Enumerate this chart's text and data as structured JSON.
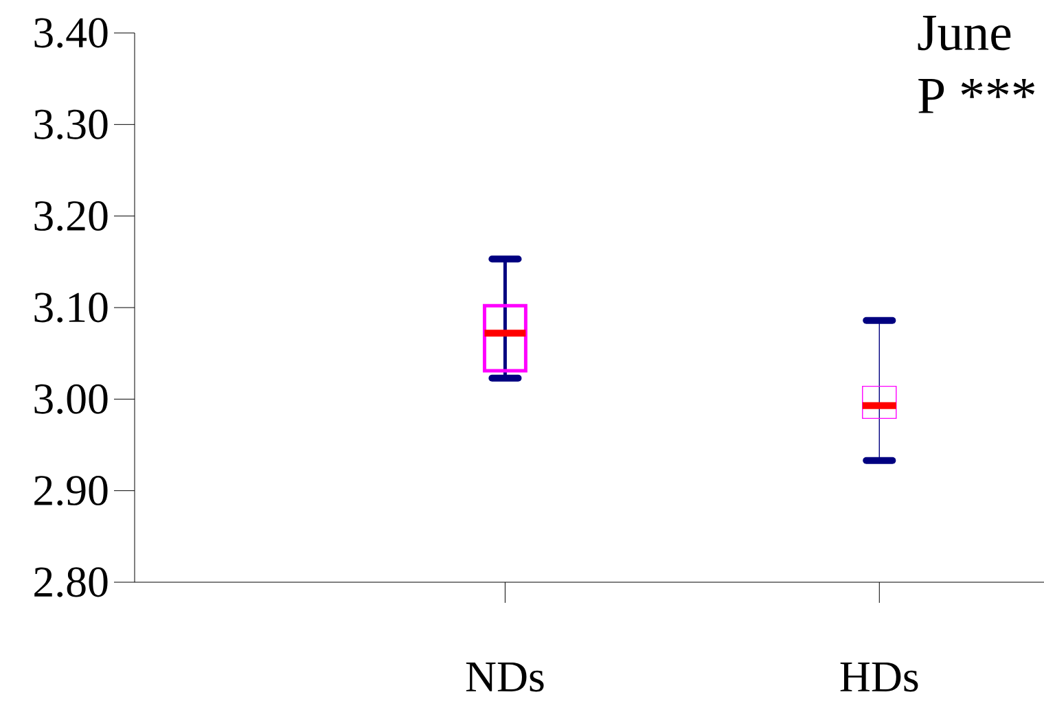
{
  "chart_data": {
    "type": "box",
    "categories": [
      "NDs",
      "HDs"
    ],
    "series": [
      {
        "color": "#ff00ff",
        "boxes": [
          {
            "low": 3.023,
            "q1": 3.031,
            "median": 3.072,
            "q3": 3.102,
            "high": 3.153
          },
          {
            "low": 2.933,
            "q1": 2.979,
            "median": 2.993,
            "q3": 3.014,
            "high": 3.086
          }
        ]
      }
    ],
    "ylim": [
      2.8,
      3.4
    ],
    "yticks": [
      {
        "value": 2.8,
        "label": "2.80"
      },
      {
        "value": 2.9,
        "label": "2.90"
      },
      {
        "value": 3.0,
        "label": "3.00"
      },
      {
        "value": 3.1,
        "label": "3.10"
      },
      {
        "value": 3.2,
        "label": "3.20"
      },
      {
        "value": 3.3,
        "label": "3.30"
      },
      {
        "value": 3.4,
        "label": "3.40"
      }
    ],
    "annotations": [
      "June",
      "P ***"
    ]
  }
}
